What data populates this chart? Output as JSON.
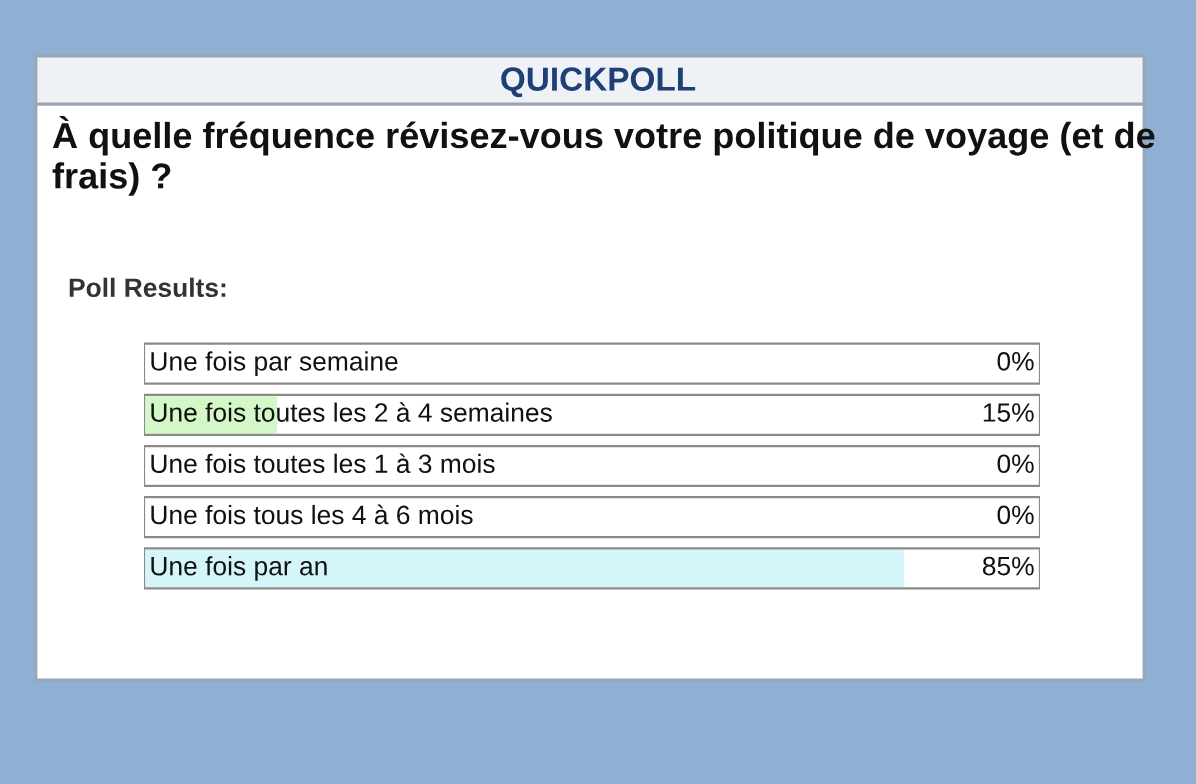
{
  "chart_data": {
    "type": "bar",
    "orientation": "horizontal",
    "subtitle": "QUICKPOLL",
    "title": "À quelle fréquence révisez-vous votre politique de voyage (et de frais) ?",
    "annotations": [
      "Poll Results:"
    ],
    "categories": [
      "Une fois par semaine",
      "Une fois toutes les 2 à 4 semaines",
      "Une fois toutes les 1 à 3 mois",
      "Une fois tous les 4 à 6 mois",
      "Une fois par an"
    ],
    "values": [
      0,
      15,
      0,
      0,
      85
    ],
    "colors": [
      null,
      "#d4f7c8",
      null,
      null,
      "#d4f6fb"
    ],
    "value_labels": [
      "0%",
      "15%",
      "0%",
      "0%",
      "85%"
    ],
    "xlim": [
      0,
      100
    ],
    "legend": false
  }
}
